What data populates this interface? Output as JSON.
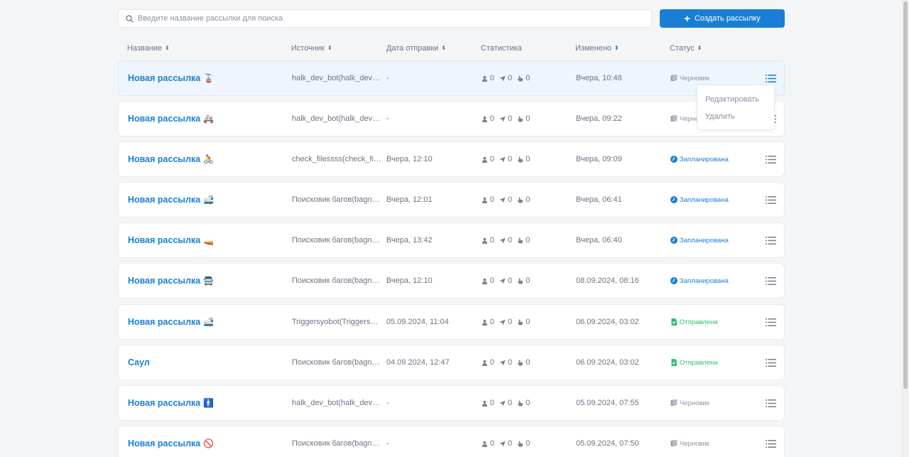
{
  "search": {
    "placeholder": "Введите название рассылки для поиска"
  },
  "create_button": {
    "label": "Создать рассылку"
  },
  "columns": {
    "name": "Название",
    "source": "Источник",
    "date": "Дата отправки",
    "stats": "Статистика",
    "modified": "Изменено",
    "status": "Статус"
  },
  "rows": [
    {
      "name": "Новая рассылка",
      "emoji": "🚡",
      "source": "halk_dev_bot(halk_dev_bot)",
      "date": "-",
      "stats": [
        "0",
        "0",
        "0"
      ],
      "modified": "Вчера, 10:48",
      "status": "Черновик",
      "status_type": "draft"
    },
    {
      "name": "Новая рассылка",
      "emoji": "🚑",
      "source": "halk_dev_bot(halk_dev_bot)",
      "date": "-",
      "stats": [
        "0",
        "0",
        "0"
      ],
      "modified": "Вчера, 09:22",
      "status": "Черновик",
      "status_type": "draft"
    },
    {
      "name": "Новая рассылка",
      "emoji": "🚴",
      "source": "check_filessss(check_filessss)",
      "date": "Вчера, 12:10",
      "stats": [
        "0",
        "0",
        "0"
      ],
      "modified": "Вчера, 09:09",
      "status": "Запланирована",
      "status_type": "planned"
    },
    {
      "name": "Новая рассылка",
      "emoji": "🚅",
      "source": "Поисковик багов(bagnutbot)",
      "date": "Вчера, 12:01",
      "stats": [
        "0",
        "0",
        "0"
      ],
      "modified": "Вчера, 06:41",
      "status": "Запланирована",
      "status_type": "planned"
    },
    {
      "name": "Новая рассылка",
      "emoji": "🚤",
      "source": "Поисковик багов(bagnutbot)",
      "date": "Вчера, 13:42",
      "stats": [
        "0",
        "0",
        "0"
      ],
      "modified": "Вчера, 06:40",
      "status": "Запланирована",
      "status_type": "planned"
    },
    {
      "name": "Новая рассылка",
      "emoji": "🚍",
      "source": "Поисковик багов(bagnutbot)",
      "date": "Вчера, 12:10",
      "stats": [
        "0",
        "0",
        "0"
      ],
      "modified": "08.09.2024, 08:16",
      "status": "Запланирована",
      "status_type": "planned"
    },
    {
      "name": "Новая рассылка",
      "emoji": "🚅",
      "source": "Triggersyobot(Triggersyobot)",
      "date": "05.09.2024, 11:04",
      "stats": [
        "0",
        "0",
        "0"
      ],
      "modified": "06.09.2024, 03:02",
      "status": "Отправлена",
      "status_type": "sent"
    },
    {
      "name": "Саул",
      "emoji": "",
      "source": "Поисковик багов(bagnutbot)",
      "date": "04.09.2024, 12:47",
      "stats": [
        "0",
        "0",
        "0"
      ],
      "modified": "06.09.2024, 03:02",
      "status": "Отправлена",
      "status_type": "sent"
    },
    {
      "name": "Новая рассылка",
      "emoji": "🚹",
      "source": "halk_dev_bot(halk_dev_bot)",
      "date": "-",
      "stats": [
        "0",
        "0",
        "0"
      ],
      "modified": "05.09.2024, 07:55",
      "status": "Черновик",
      "status_type": "draft"
    },
    {
      "name": "Новая рассылка",
      "emoji": "🚫",
      "source": "Поисковик багов(bagnutbot)",
      "date": "-",
      "stats": [
        "0",
        "0",
        "0"
      ],
      "modified": "05.09.2024, 07:50",
      "status": "Черновик",
      "status_type": "draft"
    }
  ],
  "dropdown": {
    "edit": "Редактировать",
    "delete": "Удалить"
  },
  "colors": {
    "accent": "#1a7fd4",
    "draft": "#8a93a0",
    "planned": "#1a7fd4",
    "sent": "#2ebd72",
    "background": "#f4f5f7"
  },
  "icons": {
    "search": "search-icon",
    "plus": "plus-icon",
    "sort": "sort-icon",
    "users": "user-icon",
    "sent": "send-icon",
    "clicks": "click-icon",
    "menu": "menu-list-icon",
    "draft": "draft-doc-icon",
    "planned": "clock-icon",
    "sent_status": "sent-doc-icon"
  }
}
